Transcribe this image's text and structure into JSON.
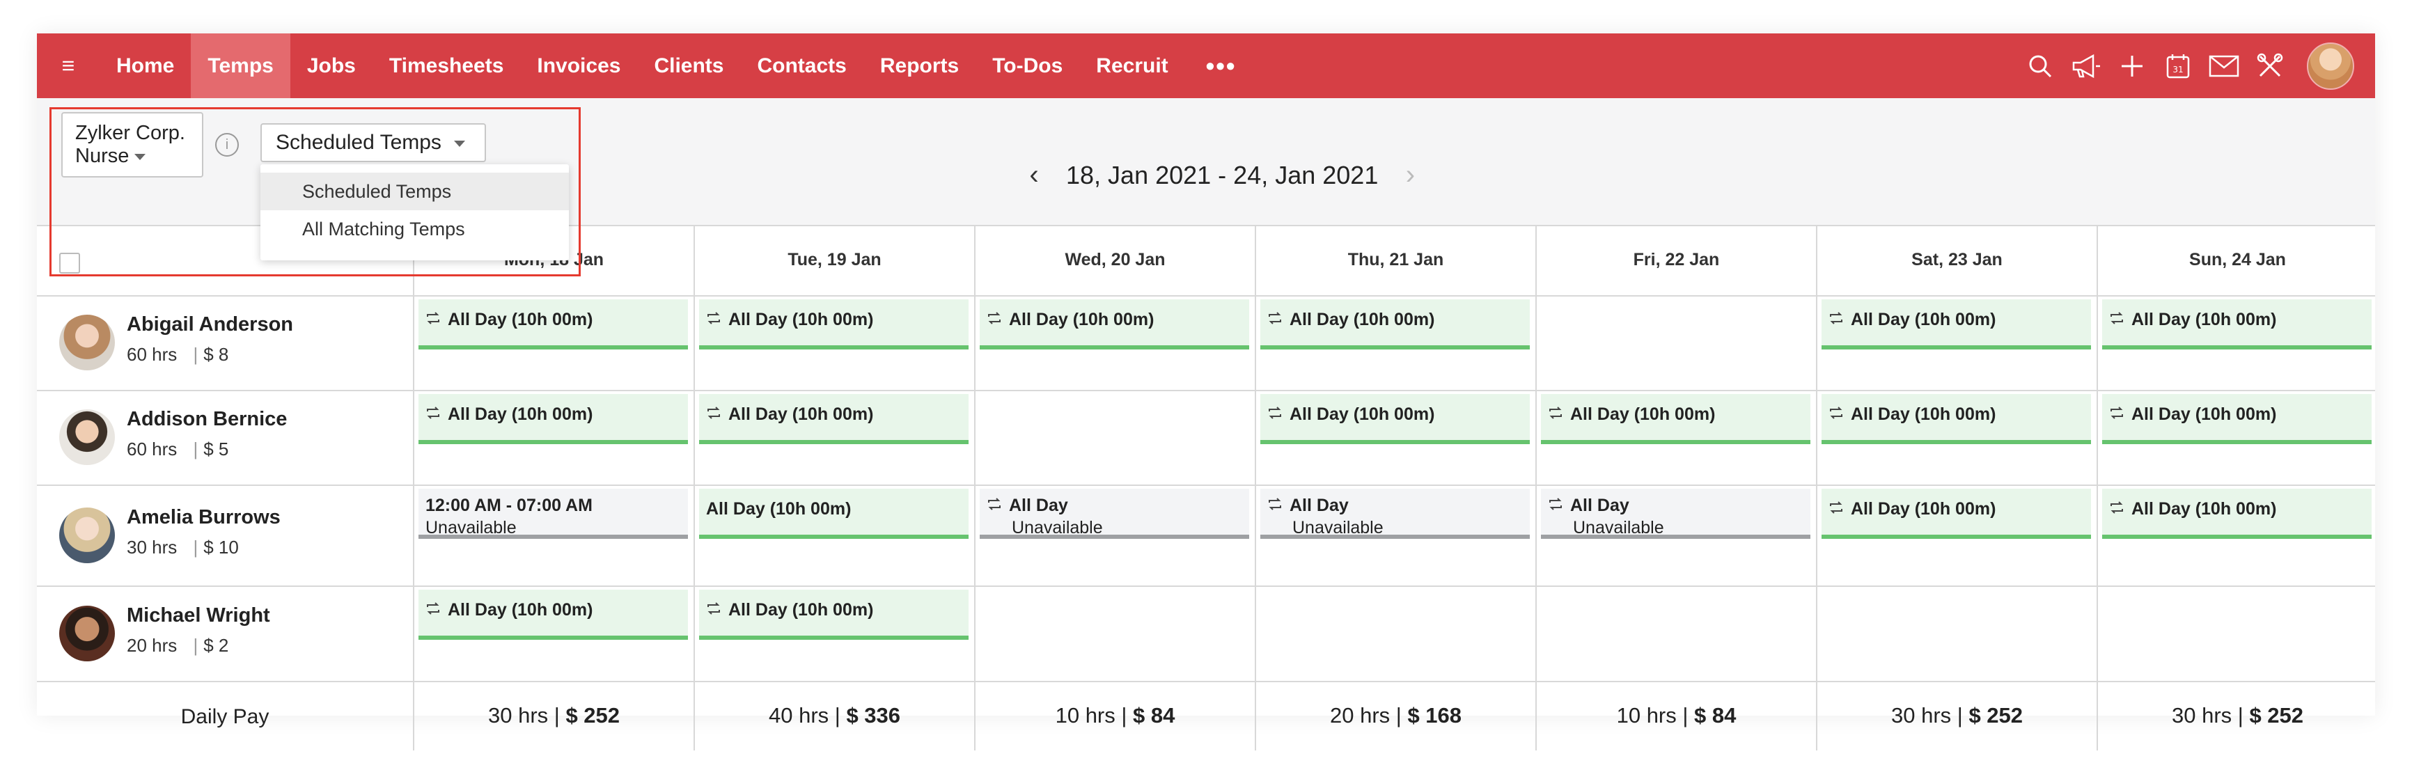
{
  "nav": {
    "items": [
      "Home",
      "Temps",
      "Jobs",
      "Timesheets",
      "Invoices",
      "Clients",
      "Contacts",
      "Reports",
      "To-Dos",
      "Recruit"
    ],
    "active": "Temps",
    "more": "•••"
  },
  "toolbar": {
    "client_line1": "Zylker Corp.",
    "client_line2": "Nurse",
    "filter_value": "Scheduled Temps",
    "filter_options": [
      "Scheduled Temps",
      "All Matching Temps"
    ],
    "date_range": "18, Jan 2021 - 24, Jan 2021"
  },
  "days": [
    "Mon, 18 Jan",
    "Tue, 19 Jan",
    "Wed, 20 Jan",
    "Thu, 21 Jan",
    "Fri, 22 Jan",
    "Sat, 23 Jan",
    "Sun, 24 Jan"
  ],
  "temps": [
    {
      "name": "Abigail Anderson",
      "hrs": "60 hrs",
      "pay": "$ 8",
      "shifts": [
        {
          "t": "All Day (10h 00m)"
        },
        {
          "t": "All Day (10h 00m)"
        },
        {
          "t": "All Day (10h 00m)"
        },
        {
          "t": "All Day (10h 00m)"
        },
        null,
        {
          "t": "All Day (10h 00m)"
        },
        {
          "t": "All Day (10h 00m)"
        }
      ]
    },
    {
      "name": "Addison Bernice",
      "hrs": "60 hrs",
      "pay": "$ 5",
      "shifts": [
        {
          "t": "All Day (10h 00m)"
        },
        {
          "t": "All Day (10h 00m)"
        },
        null,
        {
          "t": "All Day (10h 00m)"
        },
        {
          "t": "All Day (10h 00m)"
        },
        {
          "t": "All Day (10h 00m)"
        },
        {
          "t": "All Day (10h 00m)"
        }
      ]
    },
    {
      "name": "Amelia Burrows",
      "hrs": "30 hrs",
      "pay": "$ 10",
      "shifts": [
        {
          "t": "12:00 AM - 07:00 AM",
          "sub": "Unavailable",
          "unavail": true,
          "norep": true
        },
        {
          "t": "All Day (10h 00m)",
          "norep": true
        },
        {
          "t": "All Day",
          "sub": "Unavailable",
          "unavail": true
        },
        {
          "t": "All Day",
          "sub": "Unavailable",
          "unavail": true
        },
        {
          "t": "All Day",
          "sub": "Unavailable",
          "unavail": true
        },
        {
          "t": "All Day (10h 00m)"
        },
        {
          "t": "All Day (10h 00m)"
        }
      ]
    },
    {
      "name": "Michael Wright",
      "hrs": "20 hrs",
      "pay": "$ 2",
      "shifts": [
        {
          "t": "All Day (10h 00m)"
        },
        {
          "t": "All Day (10h 00m)"
        },
        null,
        null,
        null,
        null,
        null
      ]
    }
  ],
  "footer": {
    "label": "Daily Pay",
    "totals": [
      {
        "hrs": "30 hrs",
        "pay": "$ 252"
      },
      {
        "hrs": "40 hrs",
        "pay": "$ 336"
      },
      {
        "hrs": "10 hrs",
        "pay": "$ 84"
      },
      {
        "hrs": "20 hrs",
        "pay": "$ 168"
      },
      {
        "hrs": "10 hrs",
        "pay": "$ 84"
      },
      {
        "hrs": "30 hrs",
        "pay": "$ 252"
      },
      {
        "hrs": "30 hrs",
        "pay": "$ 252"
      }
    ]
  },
  "colors": {
    "brand": "#d63f45",
    "shift_bg": "#e8f6ea",
    "shift_bar": "#66c36e",
    "unavail_bar": "#9ea0a3",
    "highlight": "#e53a2f"
  }
}
